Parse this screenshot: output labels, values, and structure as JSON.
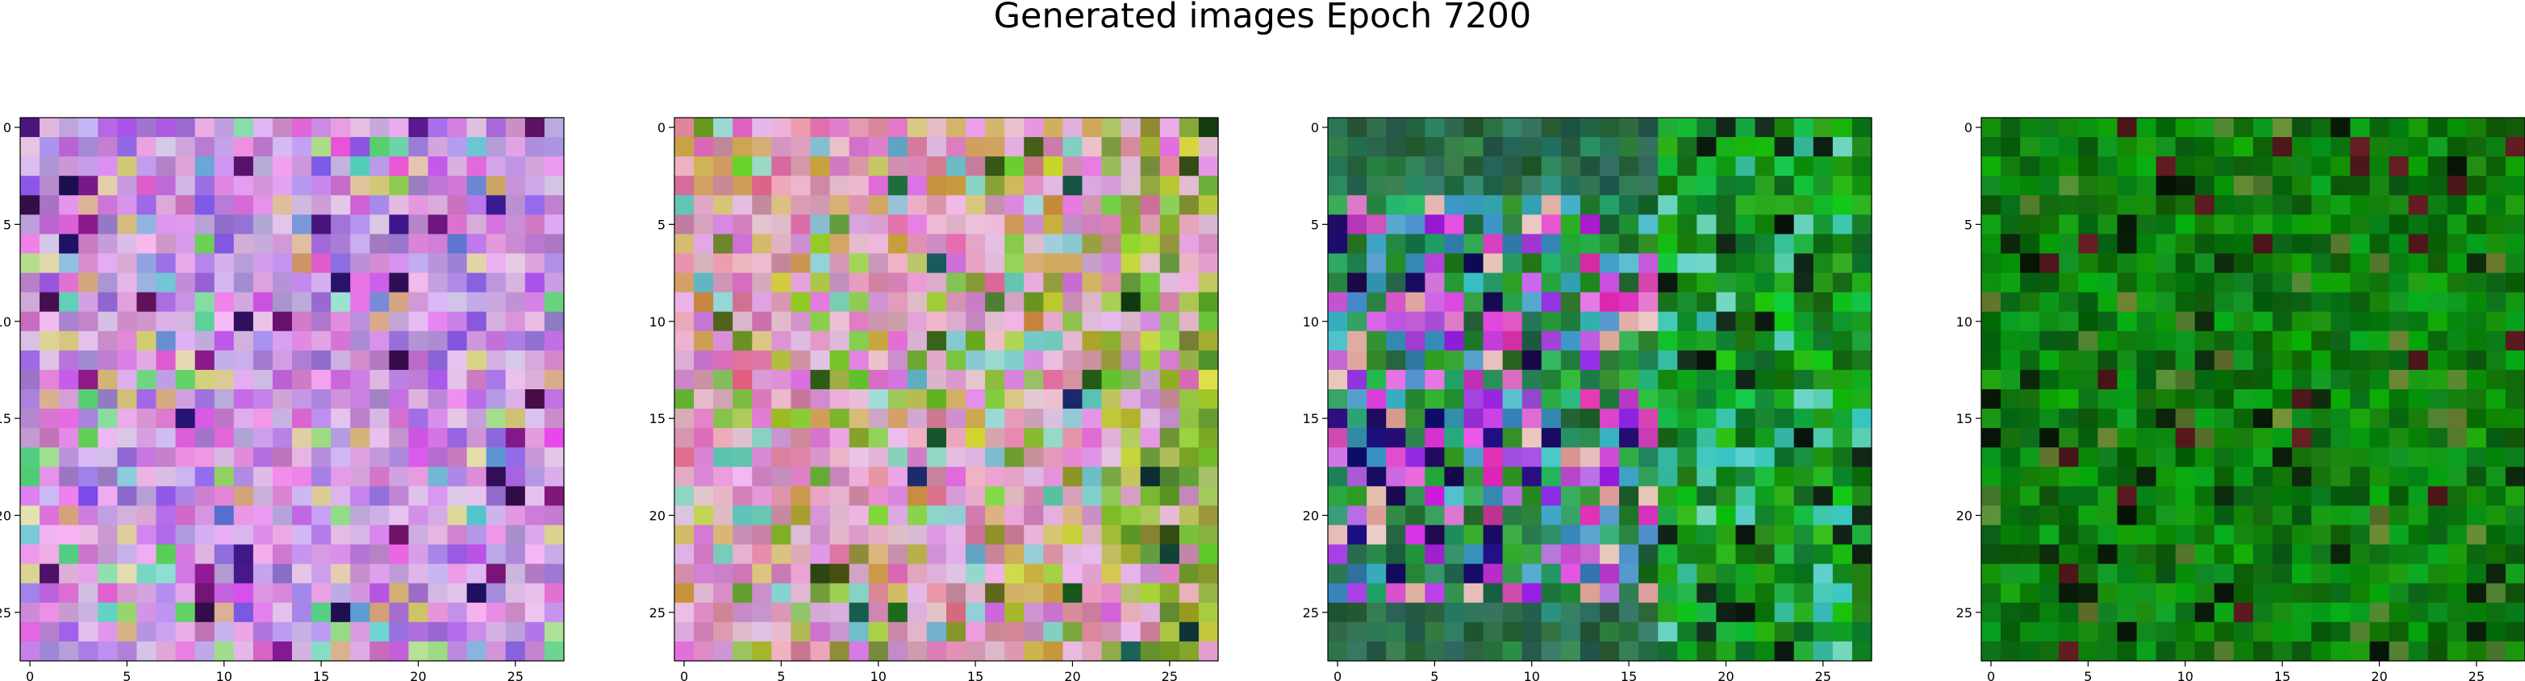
{
  "figure": {
    "suptitle": "Generated images Epoch 7200"
  },
  "chart_data": [
    {
      "type": "heatmap",
      "title": "",
      "xlabel": "",
      "ylabel": "",
      "xlim": [
        -0.5,
        27.5
      ],
      "ylim": [
        27.5,
        -0.5
      ],
      "xticks": [
        0,
        5,
        10,
        15,
        20,
        25
      ],
      "yticks": [
        0,
        5,
        10,
        15,
        20,
        25
      ],
      "grid_size": [
        28,
        28
      ],
      "palette": "pastel-violet",
      "base_color": "#b79ad9"
    },
    {
      "type": "heatmap",
      "title": "",
      "xlabel": "",
      "ylabel": "",
      "xlim": [
        -0.5,
        27.5
      ],
      "ylim": [
        27.5,
        -0.5
      ],
      "xticks": [
        0,
        5,
        10,
        15,
        20,
        25
      ],
      "yticks": [
        0,
        5,
        10,
        15,
        20,
        25
      ],
      "grid_size": [
        28,
        28
      ],
      "palette": "pastel-pink-olive",
      "base_color": "#c9a0b8"
    },
    {
      "type": "heatmap",
      "title": "",
      "xlabel": "",
      "ylabel": "",
      "xlim": [
        -0.5,
        27.5
      ],
      "ylim": [
        27.5,
        -0.5
      ],
      "xticks": [
        0,
        5,
        10,
        15,
        20,
        25
      ],
      "yticks": [
        0,
        5,
        10,
        15,
        20,
        25
      ],
      "grid_size": [
        28,
        28
      ],
      "palette": "green-violet",
      "base_color": "#1f7a3a"
    },
    {
      "type": "heatmap",
      "title": "",
      "xlabel": "",
      "ylabel": "",
      "xlim": [
        -0.5,
        27.5
      ],
      "ylim": [
        27.5,
        -0.5
      ],
      "xticks": [
        0,
        5,
        10,
        15,
        20,
        25
      ],
      "yticks": [
        0,
        5,
        10,
        15,
        20,
        25
      ],
      "grid_size": [
        28,
        28
      ],
      "palette": "green",
      "base_color": "#138a14"
    }
  ]
}
